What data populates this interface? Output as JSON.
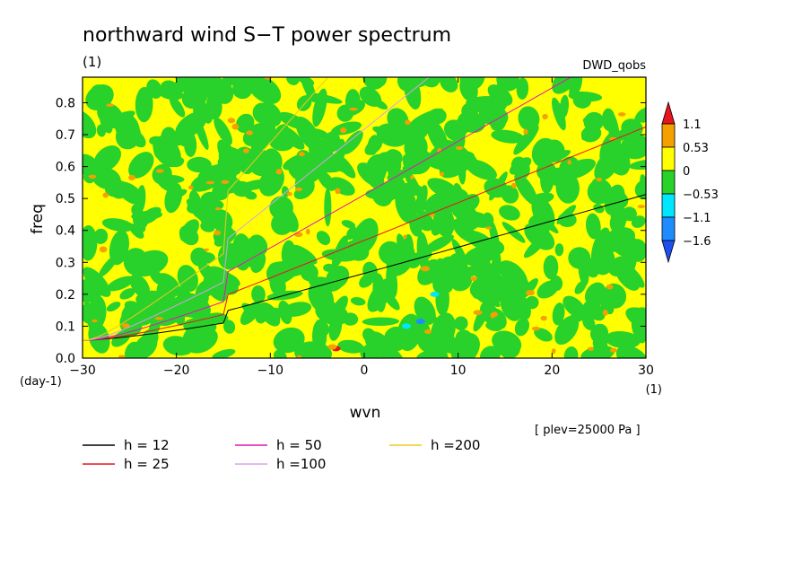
{
  "chart_data": {
    "type": "heatmap",
    "title": "northward wind S−T power spectrum",
    "unit_label": "(1)",
    "dataset_label": "DWD_qobs",
    "xlabel": "wvn",
    "ylabel": "freq",
    "y_unit": "(day-1)",
    "x_unit": "(1)",
    "level_note": "[ plev=25000 Pa ]",
    "xlim": [
      -30,
      30
    ],
    "ylim": [
      0,
      0.88
    ],
    "x_ticks": [
      "−30",
      "−20",
      "−10",
      "0",
      "10",
      "20",
      "30"
    ],
    "x_tick_values": [
      -30,
      -20,
      -10,
      0,
      10,
      20,
      30
    ],
    "y_ticks": [
      "0.0",
      "0.1",
      "0.2",
      "0.3",
      "0.4",
      "0.5",
      "0.6",
      "0.7",
      "0.8"
    ],
    "y_tick_values": [
      0,
      0.1,
      0.2,
      0.3,
      0.4,
      0.5,
      0.6,
      0.7,
      0.8
    ],
    "colorbar": {
      "levels": [
        "1.1",
        "0.53",
        "0",
        "−0.53",
        "−1.1",
        "−1.6"
      ],
      "colors": [
        "#e8141e",
        "#f5a000",
        "#ffff00",
        "#28d22a",
        "#00e6ff",
        "#1e8cff",
        "#1e50f0"
      ]
    },
    "dispersion_curves": [
      {
        "name": "h = 12",
        "color": "#000000"
      },
      {
        "name": "h = 25",
        "color": "#e8141e"
      },
      {
        "name": "h = 50",
        "color": "#e614b4"
      },
      {
        "name": "h =100",
        "color": "#d8a0ea"
      },
      {
        "name": "h =200",
        "color": "#f0c81e"
      }
    ],
    "h_values": [
      12,
      25,
      50,
      100,
      200
    ],
    "field_colors": {
      "positive": "#ffff00",
      "negative": "#28d22a",
      "strong_positive": "#f5a000",
      "strong_negative": "#00e6ff"
    }
  }
}
